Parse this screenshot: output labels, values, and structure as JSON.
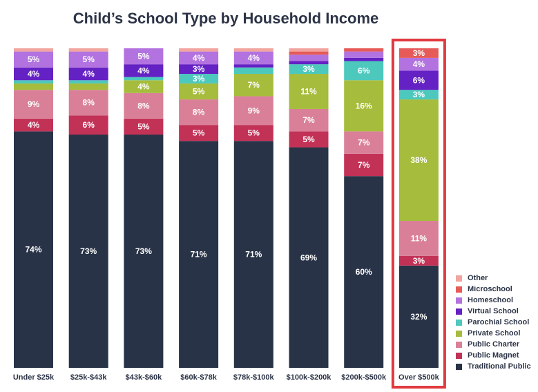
{
  "chart_data": {
    "type": "bar",
    "stacked": true,
    "title": "Child’s School Type by Household Income",
    "xlabel": "",
    "ylabel": "",
    "ylim": [
      0,
      100
    ],
    "categories": [
      "Under $25k",
      "$25k-$43k",
      "$43k-$60k",
      "$60k-$78k",
      "$78k-$100k",
      "$100k-$200k",
      "$200k-$500k",
      "Over $500k"
    ],
    "highlight_category": "Over $500k",
    "highlight_color": "#e0393e",
    "series": [
      {
        "name": "Traditional Public",
        "color": "#283347",
        "values": [
          74,
          73,
          73,
          71,
          71,
          69,
          60,
          32
        ],
        "labels": [
          "74%",
          "73%",
          "73%",
          "71%",
          "71%",
          "69%",
          "60%",
          "32%"
        ]
      },
      {
        "name": "Public Magnet",
        "color": "#c23257",
        "values": [
          4,
          6,
          5,
          5,
          5,
          5,
          7,
          3
        ],
        "labels": [
          "4%",
          "6%",
          "5%",
          "5%",
          "5%",
          "5%",
          "7%",
          "3%"
        ]
      },
      {
        "name": "Public Charter",
        "color": "#d98098",
        "values": [
          9,
          8,
          8,
          8,
          9,
          7,
          7,
          11
        ],
        "labels": [
          "9%",
          "8%",
          "8%",
          "8%",
          "9%",
          "7%",
          "7%",
          "11%"
        ]
      },
      {
        "name": "Private School",
        "color": "#a6bc3c",
        "values": [
          2,
          2,
          4,
          5,
          7,
          11,
          16,
          38
        ],
        "labels": [
          "",
          "",
          "4%",
          "5%",
          "7%",
          "11%",
          "16%",
          "38%"
        ]
      },
      {
        "name": "Parochial School",
        "color": "#4cc8bd",
        "values": [
          1,
          1,
          1,
          3,
          2,
          3,
          6,
          3
        ],
        "labels": [
          "",
          "",
          "",
          "3%",
          "",
          "3%",
          "6%",
          "3%"
        ]
      },
      {
        "name": "Virtual School",
        "color": "#6421c3",
        "values": [
          4,
          4,
          4,
          3,
          1,
          1,
          1,
          6
        ],
        "labels": [
          "4%",
          "4%",
          "4%",
          "3%",
          "",
          "",
          "",
          "6%"
        ]
      },
      {
        "name": "Homeschool",
        "color": "#b273e0",
        "values": [
          5,
          5,
          5,
          4,
          4,
          2,
          2,
          4
        ],
        "labels": [
          "5%",
          "5%",
          "5%",
          "4%",
          "4%",
          "",
          "",
          "4%"
        ]
      },
      {
        "name": "Microschool",
        "color": "#e65a57",
        "values": [
          0,
          0,
          0,
          0,
          0,
          1,
          1,
          3
        ],
        "labels": [
          "",
          "",
          "",
          "",
          "",
          "",
          "",
          "3%"
        ]
      },
      {
        "name": "Other",
        "color": "#f2a49f",
        "values": [
          1,
          1,
          0,
          1,
          1,
          1,
          0,
          0
        ],
        "labels": [
          "",
          "",
          "",
          "",
          "",
          "",
          "",
          ""
        ]
      }
    ]
  }
}
